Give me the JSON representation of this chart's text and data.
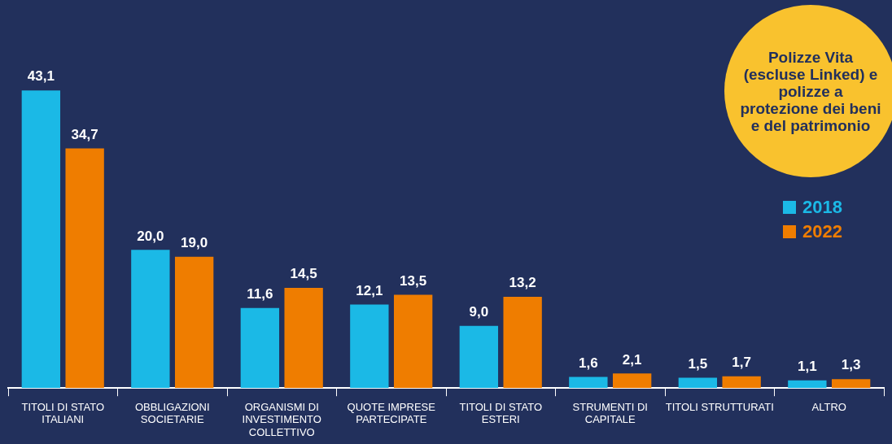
{
  "chart_data": {
    "type": "bar",
    "title": "Polizze Vita (escluse Linked) e polizze a protezione dei beni e del patrimonio",
    "categories": [
      "TITOLI DI STATO ITALIANI",
      "OBBLIGAZIONI SOCIETARIE",
      "ORGANISMI DI INVESTIMENTO COLLETTIVO",
      "QUOTE IMPRESE PARTECIPATE",
      "TITOLI DI STATO ESTERI",
      "STRUMENTI DI CAPITALE",
      "TITOLI STRUTTURATI",
      "ALTRO"
    ],
    "series": [
      {
        "name": "2018",
        "color": "#1bb9e6",
        "values": [
          43.1,
          20.0,
          11.6,
          12.1,
          9.0,
          1.6,
          1.5,
          1.1
        ],
        "value_labels": [
          "43,1",
          "20,0",
          "11,6",
          "12,1",
          "9,0",
          "1,6",
          "1,5",
          "1,1"
        ]
      },
      {
        "name": "2022",
        "color": "#ef7d00",
        "values": [
          34.7,
          19.0,
          14.5,
          13.5,
          13.2,
          2.1,
          1.7,
          1.3
        ],
        "value_labels": [
          "34,7",
          "19,0",
          "14,5",
          "13,5",
          "13,2",
          "2,1",
          "1,7",
          "1,3"
        ]
      }
    ],
    "grid": false,
    "legend": "right"
  }
}
